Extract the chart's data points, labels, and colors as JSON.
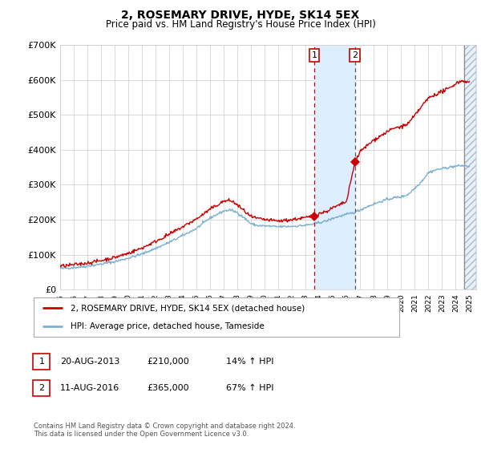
{
  "title": "2, ROSEMARY DRIVE, HYDE, SK14 5EX",
  "subtitle": "Price paid vs. HM Land Registry's House Price Index (HPI)",
  "ylim": [
    0,
    700000
  ],
  "yticks": [
    0,
    100000,
    200000,
    300000,
    400000,
    500000,
    600000,
    700000
  ],
  "ytick_labels": [
    "£0",
    "£100K",
    "£200K",
    "£300K",
    "£400K",
    "£500K",
    "£600K",
    "£700K"
  ],
  "sale1_year": 2013.64,
  "sale1_price": 210000,
  "sale2_year": 2016.61,
  "sale2_price": 365000,
  "hatch_start": 2024.6,
  "xmin": 1995,
  "xmax": 2025.5,
  "red_line_color": "#cc0000",
  "blue_line_color": "#7ab0d4",
  "background_color": "#ffffff",
  "grid_color": "#cccccc",
  "shade_color": "#ddeeff",
  "legend_label_red": "2, ROSEMARY DRIVE, HYDE, SK14 5EX (detached house)",
  "legend_label_blue": "HPI: Average price, detached house, Tameside",
  "table_row1": [
    "1",
    "20-AUG-2013",
    "£210,000",
    "14% ↑ HPI"
  ],
  "table_row2": [
    "2",
    "11-AUG-2016",
    "£365,000",
    "67% ↑ HPI"
  ],
  "footer": "Contains HM Land Registry data © Crown copyright and database right 2024.\nThis data is licensed under the Open Government Licence v3.0."
}
